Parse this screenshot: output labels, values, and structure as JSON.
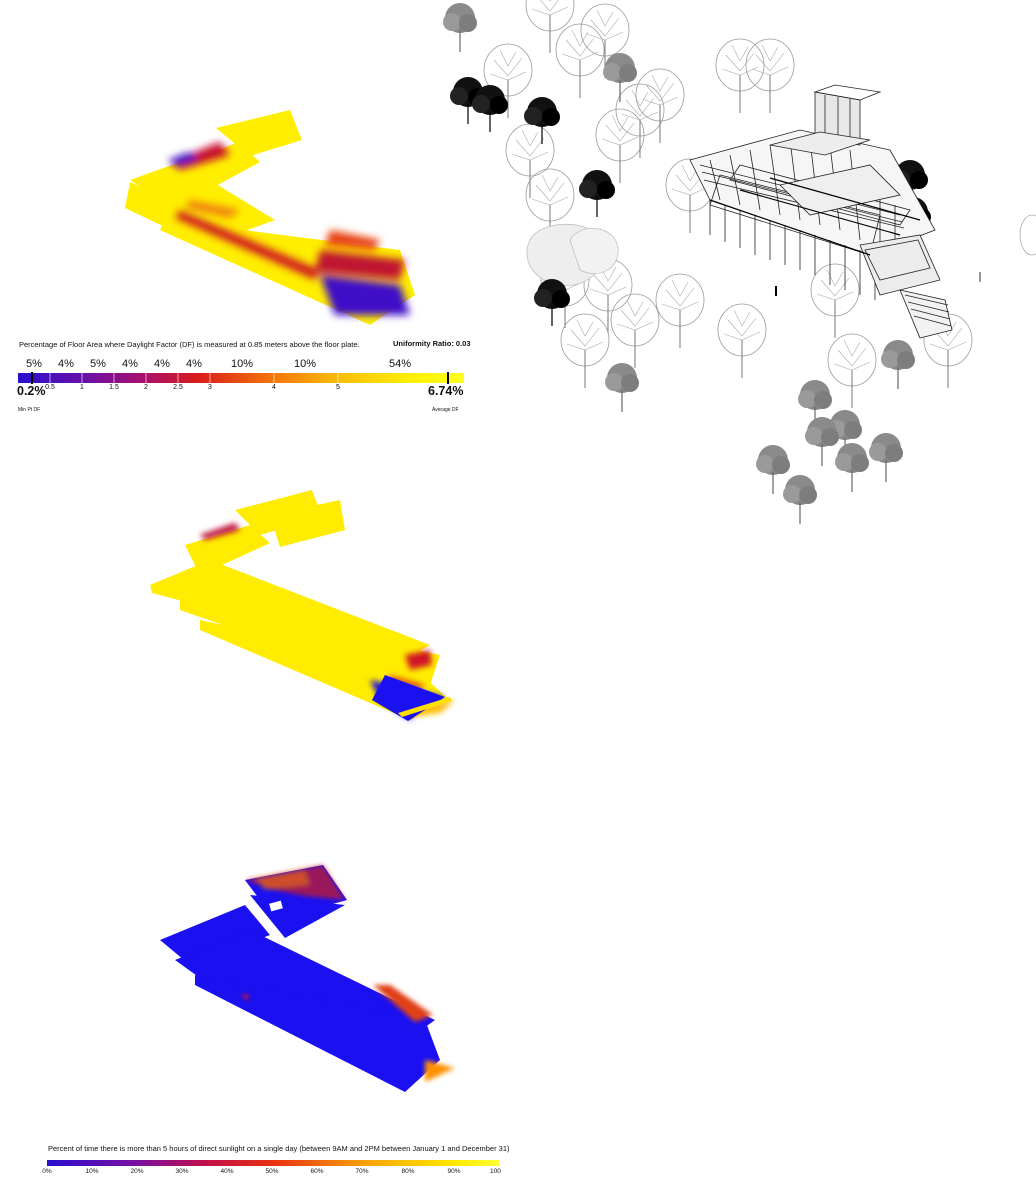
{
  "df_legend": {
    "caption": "Percentage of Floor Area where Daylight Factor (DF) is measured at 0.85 meters above the floor plate.",
    "uniformity": "Uniformity Ratio: 0.03",
    "distribution": [
      "5%",
      "4%",
      "5%",
      "4%",
      "4%",
      "4%",
      "10%",
      "10%",
      "54%"
    ],
    "scale_ticks": [
      "0.5",
      "1",
      "1.5",
      "2",
      "2.5",
      "3",
      "4",
      "5"
    ],
    "min_value": "0.2%",
    "min_label": "Min Pt DF",
    "avg_value": "6.74%",
    "avg_label": "Average DF"
  },
  "sun_legend": {
    "caption": "Percent of time there is more than 5 hours of direct sunlight on a single day (between 9AM and 2PM between January 1 and December 31)",
    "ticks": [
      "0%",
      "10%",
      "20%",
      "30%",
      "40%",
      "50%",
      "60%",
      "70%",
      "80%",
      "90%",
      "100"
    ]
  },
  "colors": {
    "scale": [
      "#2a0fd0",
      "#6a10a8",
      "#a8106e",
      "#d81c1c",
      "#f26a0a",
      "#fbbd0a",
      "#ffef00"
    ],
    "floor_yellow": "#fff000",
    "floor_blue": "#1a10f0",
    "floor_red": "#c41a28"
  }
}
